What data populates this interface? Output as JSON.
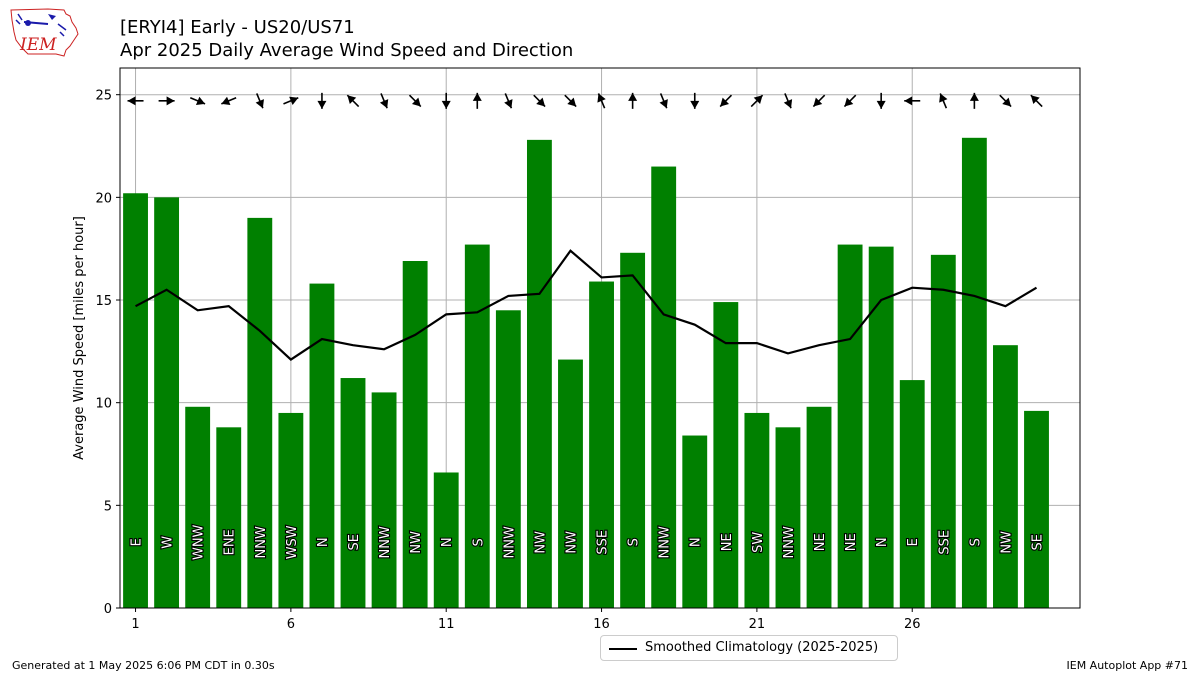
{
  "header": {
    "logo_text": "IEM",
    "title_line1": "[ERYI4] Early - US20/US71",
    "title_line2": "Apr 2025 Daily Average Wind Speed and Direction"
  },
  "footer": {
    "left": "Generated at 1 May 2025 6:06 PM CDT in 0.30s",
    "right": "IEM Autoplot App #71"
  },
  "legend": {
    "label": "Smoothed Climatology (2025-2025)",
    "placement": "bottom-center, below axes"
  },
  "colors": {
    "bar": "#008000",
    "climatology_line": "#000000",
    "grid": "#b0b0b0",
    "logo_red": "#cc2222",
    "logo_blue": "#1a1aaa"
  },
  "chart_data": {
    "type": "bar",
    "ylabel": "Average Wind Speed [miles per hour]",
    "xlabel": "",
    "xlim": [
      0.5,
      31.4
    ],
    "ylim": [
      0,
      26.3
    ],
    "xticks": [
      1,
      6,
      11,
      16,
      21,
      26
    ],
    "yticks": [
      0,
      5,
      10,
      15,
      20,
      25
    ],
    "grid": true,
    "days": [
      1,
      2,
      3,
      4,
      5,
      6,
      7,
      8,
      9,
      10,
      11,
      12,
      13,
      14,
      15,
      16,
      17,
      18,
      19,
      20,
      21,
      22,
      23,
      24,
      25,
      26,
      27,
      28,
      29,
      30
    ],
    "values": [
      20.2,
      20.0,
      9.8,
      8.8,
      19.0,
      9.5,
      15.8,
      11.2,
      10.5,
      16.9,
      6.6,
      17.7,
      14.5,
      22.8,
      12.1,
      15.9,
      17.3,
      21.5,
      8.4,
      14.9,
      9.5,
      8.8,
      9.8,
      17.7,
      17.6,
      11.1,
      17.2,
      22.9,
      12.8,
      9.6
    ],
    "directions": [
      "E",
      "W",
      "WNW",
      "ENE",
      "NNW",
      "WSW",
      "N",
      "SE",
      "NNW",
      "NW",
      "N",
      "S",
      "NNW",
      "NW",
      "NW",
      "SSE",
      "S",
      "NNW",
      "N",
      "NE",
      "SW",
      "NNW",
      "NE",
      "NE",
      "N",
      "E",
      "SSE",
      "S",
      "NW",
      "SE"
    ],
    "series": [
      {
        "name": "Smoothed Climatology (2025-2025)",
        "type": "line",
        "values": [
          14.7,
          15.5,
          14.5,
          14.7,
          13.5,
          12.1,
          13.1,
          12.8,
          12.6,
          13.3,
          14.3,
          14.4,
          15.2,
          15.3,
          17.4,
          16.1,
          16.2,
          14.3,
          13.8,
          12.9,
          12.9,
          12.4,
          12.8,
          13.1,
          15.0,
          15.6,
          15.5,
          15.2,
          14.7,
          15.6
        ]
      }
    ]
  }
}
